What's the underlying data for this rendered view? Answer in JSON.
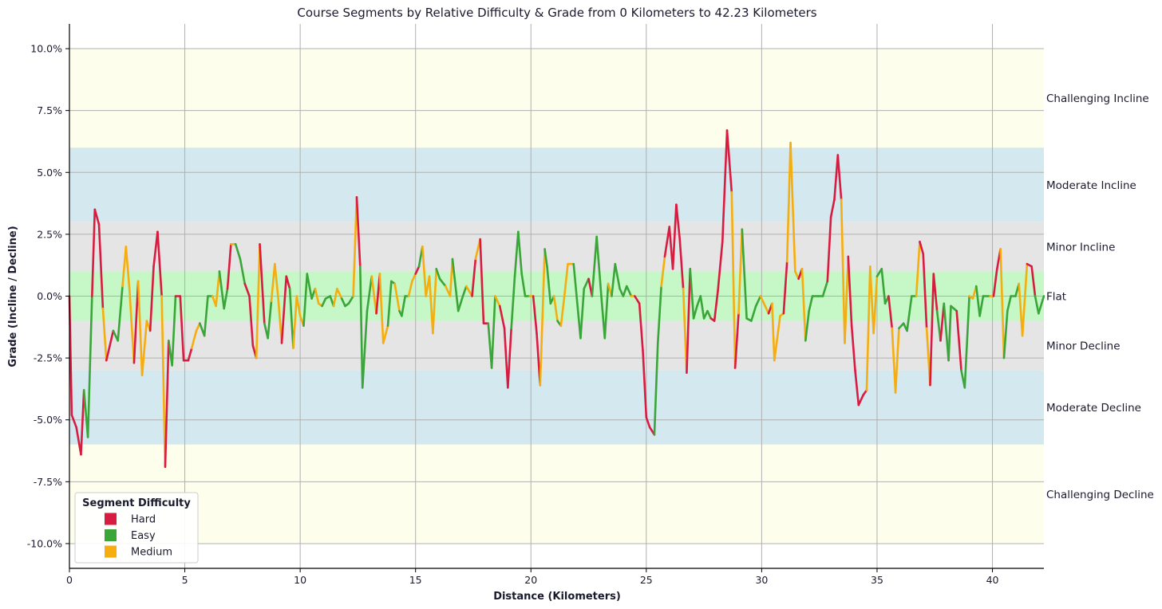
{
  "chart_data": {
    "type": "line",
    "title": "Course Segments by Relative Difficulty & Grade from 0 Kilometers to 42.23 Kilometers",
    "xlabel": "Distance (Kilometers)",
    "ylabel": "Grade (Incline / Decline)",
    "xlim": [
      0,
      42.23
    ],
    "ylim": [
      -11,
      11
    ],
    "x_ticks": [
      0,
      5,
      10,
      15,
      20,
      25,
      30,
      35,
      40
    ],
    "x_tick_labels": [
      "0",
      "5",
      "10",
      "15",
      "20",
      "25",
      "30",
      "35",
      "40"
    ],
    "y_ticks": [
      10,
      7.5,
      5,
      2.5,
      0,
      -2.5,
      -5,
      -7.5,
      -10
    ],
    "y_tick_labels": [
      "10.0%",
      "7.5%",
      "5.0%",
      "2.5%",
      "0.0%",
      "-2.5%",
      "-5.0%",
      "-7.5%",
      "-10.0%"
    ],
    "grid": true,
    "bands": [
      {
        "label": "Challenging Incline",
        "from": 6,
        "to": 10,
        "color": "#fefeec"
      },
      {
        "label": "Moderate Incline",
        "from": 3,
        "to": 6,
        "color": "#d4e9ef"
      },
      {
        "label": "Minor Incline",
        "from": 1,
        "to": 3,
        "color": "#e5e5e5"
      },
      {
        "label": "Flat",
        "from": -1,
        "to": 1,
        "color": "#c6f7c6"
      },
      {
        "label": "Minor Decline",
        "from": -3,
        "to": -1,
        "color": "#e5e5e5"
      },
      {
        "label": "Moderate Decline",
        "from": -6,
        "to": -3,
        "color": "#d4e9ef"
      },
      {
        "label": "Challenging Decline",
        "from": -10,
        "to": -6,
        "color": "#fefeec"
      }
    ],
    "legend": {
      "title": "Segment Difficulty",
      "placement": "lower-left",
      "entries": [
        {
          "name": "Hard",
          "color": "#d81b40"
        },
        {
          "name": "Easy",
          "color": "#3aa538"
        },
        {
          "name": "Medium",
          "color": "#f6ad0e"
        }
      ]
    },
    "difficulty_codes": {
      "H": "Hard",
      "E": "Easy",
      "M": "Medium"
    },
    "segment_colors": {
      "H": "#d81b40",
      "E": "#3aa538",
      "M": "#f6ad0e"
    },
    "points": [
      [
        0,
        0,
        "H"
      ],
      [
        0.1,
        -4.8,
        "H"
      ],
      [
        0.3,
        -5.3,
        "H"
      ],
      [
        0.5,
        -6.4,
        "H"
      ],
      [
        0.63,
        -3.8,
        "H"
      ],
      [
        0.8,
        -5.7,
        "E"
      ],
      [
        0.98,
        0,
        "E"
      ],
      [
        1.1,
        3.5,
        "H"
      ],
      [
        1.28,
        2.9,
        "H"
      ],
      [
        1.45,
        -0.5,
        "H"
      ],
      [
        1.6,
        -2.6,
        "M"
      ],
      [
        1.9,
        -1.4,
        "H"
      ],
      [
        2.1,
        -1.8,
        "E"
      ],
      [
        2.3,
        0.4,
        "E"
      ],
      [
        2.45,
        2.0,
        "M"
      ],
      [
        2.6,
        0.3,
        "M"
      ],
      [
        2.8,
        -2.7,
        "M"
      ],
      [
        2.98,
        0.6,
        "H"
      ],
      [
        3.15,
        -3.2,
        "M"
      ],
      [
        3.35,
        -1.0,
        "M"
      ],
      [
        3.5,
        -1.4,
        "M"
      ],
      [
        3.65,
        1.2,
        "H"
      ],
      [
        3.82,
        2.6,
        "H"
      ],
      [
        4.0,
        0,
        "H"
      ],
      [
        4.15,
        -6.9,
        "M"
      ],
      [
        4.3,
        -1.8,
        "H"
      ],
      [
        4.45,
        -2.8,
        "E"
      ],
      [
        4.6,
        0,
        "E"
      ],
      [
        4.8,
        0,
        "H"
      ],
      [
        4.95,
        -2.6,
        "H"
      ],
      [
        5.15,
        -2.6,
        "H"
      ],
      [
        5.3,
        -2.1,
        "H"
      ],
      [
        5.5,
        -1.4,
        "M"
      ],
      [
        5.65,
        -1.1,
        "M"
      ],
      [
        5.85,
        -1.6,
        "E"
      ],
      [
        6.0,
        0,
        "E"
      ],
      [
        6.2,
        0,
        "E"
      ],
      [
        6.35,
        -0.4,
        "M"
      ],
      [
        6.5,
        1.0,
        "M"
      ],
      [
        6.7,
        -0.5,
        "E"
      ],
      [
        6.85,
        0.3,
        "E"
      ],
      [
        7.0,
        2.1,
        "H"
      ],
      [
        7.2,
        2.1,
        "M"
      ],
      [
        7.4,
        1.5,
        "E"
      ],
      [
        7.6,
        0.5,
        "E"
      ],
      [
        7.8,
        0,
        "H"
      ],
      [
        7.95,
        -2.0,
        "H"
      ],
      [
        8.1,
        -2.5,
        "H"
      ],
      [
        8.25,
        2.1,
        "M"
      ],
      [
        8.45,
        -1.1,
        "H"
      ],
      [
        8.6,
        -1.7,
        "E"
      ],
      [
        8.75,
        -0.2,
        "E"
      ],
      [
        8.9,
        1.3,
        "M"
      ],
      [
        9.05,
        -0.1,
        "M"
      ],
      [
        9.2,
        -1.9,
        "M"
      ],
      [
        9.4,
        0.8,
        "H"
      ],
      [
        9.55,
        0.3,
        "H"
      ],
      [
        9.7,
        -2.1,
        "E"
      ],
      [
        9.85,
        0,
        "M"
      ],
      [
        10.0,
        -0.8,
        "M"
      ],
      [
        10.15,
        -1.2,
        "M"
      ],
      [
        10.3,
        0.9,
        "E"
      ],
      [
        10.5,
        -0.1,
        "E"
      ],
      [
        10.65,
        0.3,
        "E"
      ],
      [
        10.8,
        -0.3,
        "M"
      ],
      [
        10.95,
        -0.4,
        "M"
      ],
      [
        11.1,
        -0.1,
        "E"
      ],
      [
        11.3,
        0,
        "E"
      ],
      [
        11.45,
        -0.4,
        "E"
      ],
      [
        11.6,
        0.3,
        "M"
      ],
      [
        11.8,
        -0.1,
        "M"
      ],
      [
        11.95,
        -0.4,
        "E"
      ],
      [
        12.1,
        -0.3,
        "E"
      ],
      [
        12.3,
        0,
        "E"
      ],
      [
        12.45,
        4.0,
        "M"
      ],
      [
        12.6,
        1.2,
        "H"
      ],
      [
        12.7,
        -3.7,
        "E"
      ],
      [
        12.9,
        -0.6,
        "E"
      ],
      [
        13.1,
        0.8,
        "E"
      ],
      [
        13.3,
        -0.7,
        "M"
      ],
      [
        13.45,
        0.9,
        "H"
      ],
      [
        13.6,
        -1.9,
        "M"
      ],
      [
        13.8,
        -1.2,
        "M"
      ],
      [
        13.95,
        0.6,
        "E"
      ],
      [
        14.1,
        0.5,
        "E"
      ],
      [
        14.3,
        -0.6,
        "M"
      ],
      [
        14.4,
        -0.8,
        "E"
      ],
      [
        14.55,
        0,
        "E"
      ],
      [
        14.7,
        0,
        "E"
      ],
      [
        14.85,
        0.6,
        "M"
      ],
      [
        15.0,
        0.9,
        "M"
      ],
      [
        15.15,
        1.2,
        "H"
      ],
      [
        15.3,
        2.0,
        "E"
      ],
      [
        15.45,
        0,
        "M"
      ],
      [
        15.6,
        0.8,
        "M"
      ],
      [
        15.75,
        -1.5,
        "M"
      ],
      [
        15.9,
        1.1,
        "M"
      ],
      [
        16.05,
        0.7,
        "E"
      ],
      [
        16.3,
        0.4,
        "E"
      ],
      [
        16.5,
        0,
        "M"
      ],
      [
        16.6,
        1.5,
        "M"
      ],
      [
        16.85,
        -0.6,
        "E"
      ],
      [
        17.05,
        0,
        "E"
      ],
      [
        17.2,
        0.4,
        "E"
      ],
      [
        17.45,
        0,
        "M"
      ],
      [
        17.6,
        1.5,
        "H"
      ],
      [
        17.8,
        2.3,
        "M"
      ],
      [
        17.95,
        -1.1,
        "H"
      ],
      [
        18.15,
        -1.1,
        "H"
      ],
      [
        18.3,
        -2.9,
        "E"
      ],
      [
        18.45,
        0,
        "E"
      ],
      [
        18.65,
        -0.4,
        "M"
      ],
      [
        18.85,
        -1.3,
        "H"
      ],
      [
        19.0,
        -3.7,
        "H"
      ],
      [
        19.15,
        -1.3,
        "H"
      ],
      [
        19.3,
        0.8,
        "E"
      ],
      [
        19.45,
        2.6,
        "E"
      ],
      [
        19.6,
        0.9,
        "E"
      ],
      [
        19.75,
        0,
        "E"
      ],
      [
        19.95,
        0,
        "E"
      ],
      [
        20.1,
        0,
        "M"
      ],
      [
        20.25,
        -1.5,
        "H"
      ],
      [
        20.4,
        -3.6,
        "H"
      ],
      [
        20.6,
        1.9,
        "M"
      ],
      [
        20.7,
        1.2,
        "E"
      ],
      [
        20.85,
        -0.3,
        "E"
      ],
      [
        21.0,
        0,
        "E"
      ],
      [
        21.15,
        -1.0,
        "M"
      ],
      [
        21.3,
        -1.2,
        "E"
      ],
      [
        21.45,
        0,
        "M"
      ],
      [
        21.6,
        1.3,
        "M"
      ],
      [
        21.85,
        1.3,
        "M"
      ],
      [
        22.15,
        -1.7,
        "E"
      ],
      [
        22.3,
        0.3,
        "E"
      ],
      [
        22.5,
        0.7,
        "E"
      ],
      [
        22.65,
        0,
        "H"
      ],
      [
        22.85,
        2.4,
        "E"
      ],
      [
        23.05,
        0,
        "E"
      ],
      [
        23.2,
        -1.7,
        "E"
      ],
      [
        23.35,
        0.5,
        "E"
      ],
      [
        23.5,
        0,
        "M"
      ],
      [
        23.65,
        1.3,
        "E"
      ],
      [
        23.85,
        0.3,
        "E"
      ],
      [
        24.0,
        0,
        "E"
      ],
      [
        24.15,
        0.4,
        "E"
      ],
      [
        24.35,
        0,
        "E"
      ],
      [
        24.5,
        0,
        "M"
      ],
      [
        24.7,
        -0.3,
        "H"
      ],
      [
        24.85,
        -2.2,
        "H"
      ],
      [
        25.0,
        -4.9,
        "H"
      ],
      [
        25.15,
        -5.3,
        "H"
      ],
      [
        25.35,
        -5.6,
        "H"
      ],
      [
        25.5,
        -1.9,
        "E"
      ],
      [
        25.65,
        0.4,
        "E"
      ],
      [
        25.8,
        1.6,
        "M"
      ],
      [
        26.0,
        2.8,
        "H"
      ],
      [
        26.15,
        1.1,
        "H"
      ],
      [
        26.3,
        3.7,
        "H"
      ],
      [
        26.45,
        2.3,
        "H"
      ],
      [
        26.6,
        0.3,
        "H"
      ],
      [
        26.75,
        -3.1,
        "M"
      ],
      [
        26.9,
        1.1,
        "H"
      ],
      [
        27.05,
        -0.9,
        "E"
      ],
      [
        27.2,
        -0.4,
        "E"
      ],
      [
        27.35,
        0,
        "E"
      ],
      [
        27.5,
        -0.9,
        "E"
      ],
      [
        27.65,
        -0.6,
        "E"
      ],
      [
        27.8,
        -0.9,
        "E"
      ],
      [
        27.95,
        -1.0,
        "H"
      ],
      [
        28.1,
        0.2,
        "H"
      ],
      [
        28.3,
        2.2,
        "H"
      ],
      [
        28.5,
        6.7,
        "H"
      ],
      [
        28.7,
        4.2,
        "H"
      ],
      [
        28.85,
        -2.9,
        "M"
      ],
      [
        29.0,
        -0.7,
        "H"
      ],
      [
        29.15,
        2.7,
        "M"
      ],
      [
        29.35,
        -0.9,
        "E"
      ],
      [
        29.55,
        -1.0,
        "E"
      ],
      [
        29.75,
        -0.4,
        "E"
      ],
      [
        29.95,
        0,
        "E"
      ],
      [
        30.15,
        -0.4,
        "M"
      ],
      [
        30.3,
        -0.7,
        "M"
      ],
      [
        30.45,
        -0.3,
        "H"
      ],
      [
        30.55,
        -2.6,
        "M"
      ],
      [
        30.8,
        -0.8,
        "M"
      ],
      [
        30.95,
        -0.7,
        "M"
      ],
      [
        31.1,
        1.4,
        "H"
      ],
      [
        31.25,
        6.2,
        "M"
      ],
      [
        31.45,
        1.0,
        "M"
      ],
      [
        31.6,
        0.7,
        "M"
      ],
      [
        31.75,
        1.1,
        "H"
      ],
      [
        31.9,
        -1.8,
        "M"
      ],
      [
        32.05,
        -0.6,
        "E"
      ],
      [
        32.2,
        0,
        "E"
      ],
      [
        32.45,
        0,
        "E"
      ],
      [
        32.65,
        0,
        "E"
      ],
      [
        32.85,
        0.6,
        "E"
      ],
      [
        33.0,
        3.2,
        "H"
      ],
      [
        33.15,
        3.9,
        "H"
      ],
      [
        33.3,
        5.7,
        "H"
      ],
      [
        33.45,
        3.9,
        "H"
      ],
      [
        33.6,
        -1.9,
        "M"
      ],
      [
        33.75,
        1.6,
        "M"
      ],
      [
        33.9,
        -1.2,
        "H"
      ],
      [
        34.05,
        -3.0,
        "H"
      ],
      [
        34.2,
        -4.4,
        "H"
      ],
      [
        34.4,
        -4.0,
        "H"
      ],
      [
        34.55,
        -3.8,
        "H"
      ],
      [
        34.7,
        1.2,
        "M"
      ],
      [
        34.85,
        -1.5,
        "M"
      ],
      [
        35.0,
        0.8,
        "M"
      ],
      [
        35.2,
        1.1,
        "E"
      ],
      [
        35.35,
        -0.3,
        "E"
      ],
      [
        35.5,
        0,
        "E"
      ],
      [
        35.65,
        -1.3,
        "H"
      ],
      [
        35.8,
        -3.9,
        "M"
      ],
      [
        35.95,
        -1.3,
        "M"
      ],
      [
        36.15,
        -1.1,
        "E"
      ],
      [
        36.3,
        -1.4,
        "E"
      ],
      [
        36.5,
        0,
        "E"
      ],
      [
        36.7,
        0,
        "E"
      ],
      [
        36.85,
        2.2,
        "M"
      ],
      [
        37.0,
        1.7,
        "H"
      ],
      [
        37.15,
        -1.3,
        "H"
      ],
      [
        37.3,
        -3.6,
        "M"
      ],
      [
        37.45,
        0.9,
        "H"
      ],
      [
        37.6,
        -0.6,
        "H"
      ],
      [
        37.75,
        -1.8,
        "E"
      ],
      [
        37.9,
        -0.3,
        "H"
      ],
      [
        38.1,
        -2.6,
        "E"
      ],
      [
        38.2,
        -0.4,
        "E"
      ],
      [
        38.45,
        -0.6,
        "E"
      ],
      [
        38.65,
        -3.0,
        "H"
      ],
      [
        38.8,
        -3.7,
        "E"
      ],
      [
        39.0,
        0,
        "E"
      ],
      [
        39.15,
        -0.1,
        "M"
      ],
      [
        39.3,
        0.4,
        "M"
      ],
      [
        39.45,
        -0.8,
        "E"
      ],
      [
        39.6,
        0,
        "E"
      ],
      [
        39.9,
        0,
        "E"
      ],
      [
        40.05,
        0,
        "M"
      ],
      [
        40.2,
        1.1,
        "H"
      ],
      [
        40.35,
        1.9,
        "H"
      ],
      [
        40.5,
        -2.5,
        "M"
      ],
      [
        40.65,
        -0.6,
        "E"
      ],
      [
        40.8,
        0,
        "E"
      ],
      [
        41.0,
        0,
        "E"
      ],
      [
        41.15,
        0.5,
        "E"
      ],
      [
        41.3,
        -1.6,
        "M"
      ],
      [
        41.5,
        1.3,
        "M"
      ],
      [
        41.7,
        1.2,
        "H"
      ],
      [
        41.85,
        0,
        "H"
      ],
      [
        42.0,
        -0.7,
        "E"
      ],
      [
        42.23,
        0,
        "E"
      ]
    ]
  }
}
